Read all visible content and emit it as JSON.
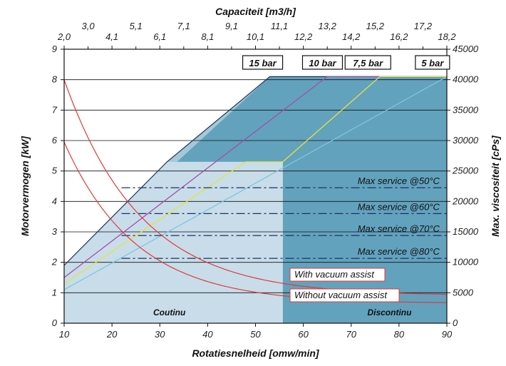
{
  "chart_data": {
    "type": "line",
    "xlabel": "Rotatiesnelheid [omw/min]",
    "ylabel": "Motorvermogen [kW]",
    "ylabel_right": "Max. viscositeit [cPs]",
    "xlabel_top": "Capaciteit [m3/h]",
    "x_ticks": [
      "10",
      "20",
      "30",
      "40",
      "50",
      "60",
      "70",
      "80",
      "90"
    ],
    "y_ticks": [
      "0",
      "1",
      "2",
      "3",
      "4",
      "5",
      "6",
      "7",
      "8",
      "9"
    ],
    "y_right_ticks": [
      "0",
      "5000",
      "10000",
      "15000",
      "20000",
      "25000",
      "30000",
      "35000",
      "40000",
      "45000"
    ],
    "top_ticks_upper": [
      "3,0",
      "5,1",
      "7,1",
      "9,1",
      "11,1",
      "13,2",
      "15,2",
      "17,2"
    ],
    "top_ticks_lower": [
      "2,0",
      "4,1",
      "6,1",
      "8,1",
      "10,1",
      "12,2",
      "14,2",
      "16,2",
      "18,2"
    ],
    "xlim": [
      10,
      90
    ],
    "ylim": [
      0,
      9
    ],
    "y_right_lim": [
      0,
      45000
    ],
    "grid": "horizontal",
    "regions": {
      "continuous": {
        "label": "Coutinu",
        "x_end": 55.7,
        "y_top": 5.3,
        "color": "#c8dde9"
      },
      "discontinuous": {
        "label": "Discontinu",
        "color": "#6aabc6",
        "color_upper": "#5b9bb6"
      }
    },
    "envelope": [
      [
        10,
        1.9
      ],
      [
        31.5,
        5.3
      ],
      [
        55.7,
        5.3
      ],
      [
        55.7,
        0
      ],
      [
        90,
        0
      ],
      [
        90,
        8.1
      ],
      [
        53,
        8.1
      ]
    ],
    "series": [
      {
        "name": "15 bar",
        "color": "#223366",
        "points": [
          [
            10,
            1.9
          ],
          [
            31.5,
            5.3
          ],
          [
            53,
            8.1
          ],
          [
            90,
            8.1
          ]
        ]
      },
      {
        "name": "10 bar",
        "color": "#a34fa8",
        "points": [
          [
            10,
            1.5
          ],
          [
            65,
            8.1
          ],
          [
            90,
            8.1
          ]
        ]
      },
      {
        "name": "7,5 bar",
        "color": "#e8e23a",
        "points": [
          [
            10,
            1.3
          ],
          [
            48,
            5.3
          ],
          [
            55.7,
            5.3
          ],
          [
            55.7,
            5.3
          ],
          [
            76,
            8.1
          ],
          [
            90,
            8.1
          ]
        ]
      },
      {
        "name": "5 bar",
        "color": "#7cc6dd",
        "points": [
          [
            10,
            1.1
          ],
          [
            90,
            8.1
          ]
        ]
      }
    ],
    "pressure_labels": [
      "15 bar",
      "10 bar",
      "7,5 bar",
      "5 bar"
    ],
    "vacuum_curves": [
      {
        "name": "With vacuum assist",
        "color": "#e03a3a",
        "y0": 8.0,
        "y_end": 0.9
      },
      {
        "name": "Without vacuum assist",
        "color": "#e03a3a",
        "y0": 5.95,
        "y_end": 0.65
      }
    ],
    "service_lines": [
      {
        "label": "Max service @50°C",
        "y": 4.45
      },
      {
        "label": "Max service @60°C",
        "y": 3.6
      },
      {
        "label": "Max service @70°C",
        "y": 2.88
      },
      {
        "label": "Max service @80°C",
        "y": 2.13
      }
    ]
  }
}
